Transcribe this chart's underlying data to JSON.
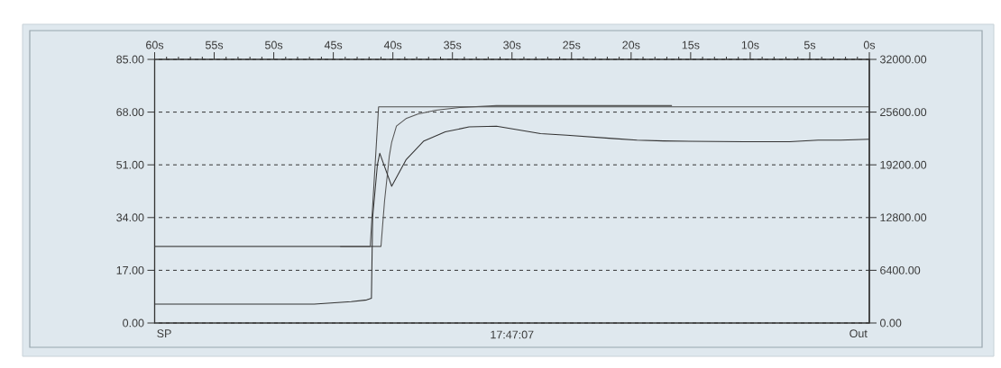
{
  "chart_data": {
    "type": "line",
    "xlabel": "17:47:07",
    "annotations": [
      "SP",
      "Out"
    ],
    "xlim": [
      60,
      0
    ],
    "xticks": [
      {
        "value": 60,
        "label": "60s"
      },
      {
        "value": 55,
        "label": "55s"
      },
      {
        "value": 50,
        "label": "50s"
      },
      {
        "value": 45,
        "label": "45s"
      },
      {
        "value": 40,
        "label": "40s"
      },
      {
        "value": 35,
        "label": "35s"
      },
      {
        "value": 30,
        "label": "30s"
      },
      {
        "value": 25,
        "label": "25s"
      },
      {
        "value": 20,
        "label": "20s"
      },
      {
        "value": 15,
        "label": "15s"
      },
      {
        "value": 10,
        "label": "10s"
      },
      {
        "value": 5,
        "label": "5s"
      },
      {
        "value": 0,
        "label": "0s"
      }
    ],
    "ylim": [
      0,
      85
    ],
    "yticks": [
      {
        "value": 0,
        "label": "0.00"
      },
      {
        "value": 17,
        "label": "17.00"
      },
      {
        "value": 34,
        "label": "34.00"
      },
      {
        "value": 51,
        "label": "51.00"
      },
      {
        "value": 68,
        "label": "68.00"
      },
      {
        "value": 85,
        "label": "85.00"
      }
    ],
    "y2lim": [
      0,
      32000
    ],
    "y2ticks": [
      {
        "value": 0,
        "label": "0.00"
      },
      {
        "value": 6400,
        "label": "6400.00"
      },
      {
        "value": 12800,
        "label": "12800.00"
      },
      {
        "value": 19200,
        "label": "19200.00"
      },
      {
        "value": 25600,
        "label": "25600.00"
      },
      {
        "value": 32000,
        "label": "32000.00"
      }
    ],
    "grid": "y",
    "series": [
      {
        "color": "#4a4a4a",
        "x": [
          60,
          41.9,
          41.2,
          0
        ],
        "values": [
          24.7,
          24.7,
          69.7,
          69.7
        ]
      },
      {
        "color": "#555555",
        "x": [
          44.4,
          41.0,
          40.7,
          40.3,
          40.1,
          39.7,
          38.9,
          37.9,
          36.4,
          34.4,
          31.3,
          16.6
        ],
        "values": [
          24.7,
          24.7,
          39.3,
          53.8,
          58.3,
          63.5,
          65.9,
          67.4,
          68.6,
          69.5,
          70.1,
          70.1
        ]
      },
      {
        "color": "#333333",
        "axis": "y2",
        "x": [
          60,
          46.6,
          43.5,
          42.2,
          41.8,
          41.7,
          41.3,
          41.1,
          40.1,
          38.9,
          37.4,
          35.6,
          33.6,
          31.3,
          27.6,
          25.4,
          21.6,
          19.5,
          17.3,
          10.5,
          6.7,
          4.3,
          2.4,
          0
        ],
        "values": [
          2300,
          2300,
          2600,
          2800,
          3000,
          12800,
          19200,
          20600,
          16600,
          19800,
          22100,
          23200,
          23800,
          23900,
          23000,
          22800,
          22400,
          22200,
          22100,
          22000,
          22000,
          22200,
          22200,
          22300
        ]
      }
    ]
  }
}
